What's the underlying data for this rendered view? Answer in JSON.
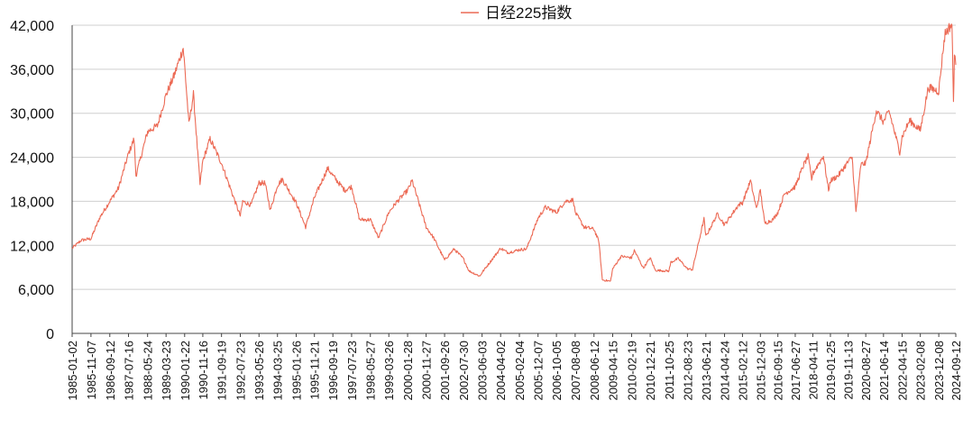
{
  "chart_data": {
    "type": "line",
    "title": "",
    "xlabel": "",
    "ylabel": "",
    "legend": {
      "placement": "top-center"
    },
    "ylim": [
      0,
      42000
    ],
    "y_ticks": [
      {
        "value": 0,
        "label": "0"
      },
      {
        "value": 6000,
        "label": "6,000"
      },
      {
        "value": 12000,
        "label": "12,000"
      },
      {
        "value": 18000,
        "label": "18,000"
      },
      {
        "value": 24000,
        "label": "24,000"
      },
      {
        "value": 30000,
        "label": "30,000"
      },
      {
        "value": 36000,
        "label": "36,000"
      },
      {
        "value": 42000,
        "label": "42,000"
      }
    ],
    "x_tick_labels": [
      "1985-01-02",
      "1985-11-07",
      "1986-09-12",
      "1987-07-16",
      "1988-05-24",
      "1989-03-23",
      "1990-01-22",
      "1990-11-16",
      "1991-09-19",
      "1992-07-23",
      "1993-05-26",
      "1994-03-25",
      "1995-01-26",
      "1995-11-21",
      "1996-09-19",
      "1997-07-23",
      "1998-05-27",
      "1999-03-26",
      "2000-01-28",
      "2000-11-27",
      "2001-09-26",
      "2002-07-30",
      "2003-06-03",
      "2004-04-02",
      "2005-02-04",
      "2005-12-07",
      "2006-10-05",
      "2007-08-08",
      "2008-06-12",
      "2009-04-15",
      "2010-02-19",
      "2010-12-21",
      "2011-10-25",
      "2012-08-23",
      "2013-06-21",
      "2014-04-24",
      "2015-02-12",
      "2015-12-03",
      "2016-09-15",
      "2017-06-27",
      "2018-04-11",
      "2019-01-25",
      "2019-11-13",
      "2020-08-27",
      "2021-06-14",
      "2022-04-15",
      "2023-02-08",
      "2023-12-08",
      "2024-09-12"
    ],
    "grid": {
      "horizontal": true,
      "vertical": false
    },
    "colors": {
      "series": "#ec6a55",
      "grid": "#cfcfcf",
      "axis": "#444444"
    },
    "series": [
      {
        "name": "日经225指数",
        "x": [
          "1985-01-02",
          "1985-06-01",
          "1985-11-07",
          "1986-04-01",
          "1986-09-12",
          "1987-02-01",
          "1987-07-16",
          "1987-10-15",
          "1987-11-15",
          "1988-05-24",
          "1988-11-01",
          "1989-03-23",
          "1989-08-01",
          "1989-12-29",
          "1990-01-22",
          "1990-04-02",
          "1990-06-15",
          "1990-10-01",
          "1990-11-16",
          "1991-03-15",
          "1991-09-19",
          "1992-02-01",
          "1992-07-23",
          "1992-09-01",
          "1993-01-15",
          "1993-05-26",
          "1993-09-01",
          "1993-11-29",
          "1994-03-25",
          "1994-06-13",
          "1995-01-26",
          "1995-06-30",
          "1995-11-21",
          "1996-06-26",
          "1996-09-19",
          "1997-04-01",
          "1997-07-23",
          "1997-12-01",
          "1998-05-27",
          "1998-10-09",
          "1999-03-26",
          "1999-08-01",
          "2000-01-28",
          "2000-04-12",
          "2000-11-27",
          "2001-04-01",
          "2001-09-26",
          "2002-03-01",
          "2002-07-30",
          "2002-11-01",
          "2003-04-28",
          "2003-06-03",
          "2004-04-02",
          "2004-08-01",
          "2005-02-04",
          "2005-06-01",
          "2005-12-07",
          "2006-04-07",
          "2006-10-05",
          "2007-02-26",
          "2007-07-09",
          "2007-08-08",
          "2008-01-01",
          "2008-06-12",
          "2008-09-01",
          "2008-10-27",
          "2009-03-10",
          "2009-04-15",
          "2009-08-30",
          "2010-02-19",
          "2010-04-05",
          "2010-08-31",
          "2010-12-21",
          "2011-03-15",
          "2011-10-25",
          "2011-11-25",
          "2012-03-27",
          "2012-08-23",
          "2012-11-14",
          "2013-05-22",
          "2013-06-21",
          "2013-12-30",
          "2014-04-24",
          "2014-12-08",
          "2015-02-12",
          "2015-06-24",
          "2015-09-29",
          "2015-12-03",
          "2016-02-12",
          "2016-06-24",
          "2016-09-15",
          "2017-01-01",
          "2017-06-27",
          "2017-11-09",
          "2018-01-23",
          "2018-03-23",
          "2018-04-11",
          "2018-10-02",
          "2018-12-25",
          "2019-01-25",
          "2019-06-01",
          "2019-11-13",
          "2020-01-17",
          "2020-03-19",
          "2020-06-08",
          "2020-08-27",
          "2021-02-16",
          "2021-06-14",
          "2021-09-14",
          "2022-03-08",
          "2022-04-15",
          "2022-08-17",
          "2023-02-08",
          "2023-06-19",
          "2023-12-08",
          "2024-02-22",
          "2024-03-22",
          "2024-07-11",
          "2024-08-05",
          "2024-08-20",
          "2024-09-12"
        ],
        "values": [
          11600,
          12700,
          12900,
          15800,
          18000,
          19800,
          24500,
          26500,
          21500,
          27500,
          28300,
          32500,
          35100,
          38900,
          36500,
          28500,
          32600,
          20300,
          23500,
          26500,
          23200,
          20000,
          16000,
          18000,
          17500,
          20500,
          20500,
          16800,
          20200,
          21000,
          17800,
          14500,
          18500,
          22500,
          21500,
          19500,
          20000,
          15500,
          15500,
          13000,
          16500,
          17900,
          19500,
          20800,
          14500,
          13000,
          10000,
          11500,
          10200,
          8500,
          7800,
          8300,
          11600,
          11000,
          11400,
          11500,
          15700,
          17200,
          16500,
          18000,
          18200,
          16500,
          14500,
          14200,
          12500,
          7300,
          7100,
          8800,
          10500,
          10300,
          11300,
          8900,
          10300,
          8600,
          8500,
          9700,
          10200,
          8800,
          8700,
          15600,
          13200,
          16300,
          14800,
          17500,
          17800,
          20800,
          17000,
          19500,
          15000,
          15500,
          16500,
          19000,
          20000,
          22900,
          24100,
          21000,
          21800,
          24200,
          19500,
          20800,
          21500,
          23400,
          24000,
          16500,
          23000,
          23200,
          30400,
          28800,
          30300,
          24700,
          26800,
          29000,
          27700,
          33500,
          33000,
          39100,
          40900,
          42200,
          31500,
          38000,
          36600
        ]
      }
    ]
  }
}
